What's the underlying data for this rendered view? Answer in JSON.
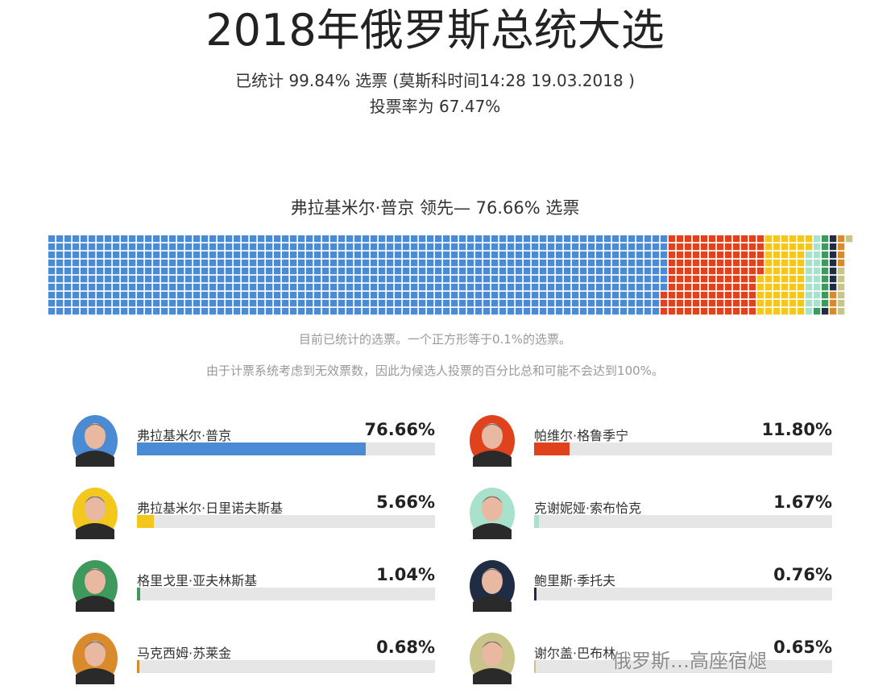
{
  "title": "2018年俄罗斯总统大选",
  "subtitle": "已统计 99.84% 选票 (莫斯科时间14:28 19.03.2018 )",
  "turnout": "投票率为 67.47%",
  "leader_text": "弗拉基米尔·普京 领先— 76.66% 选票",
  "note1": "目前已统计的选票。一个正方形等于0.1%的选票。",
  "note2": "由于计票系统考虑到无效票数，因此为候选人投票的百分比总和可能不会达到100%。",
  "watermark": "俄罗斯…高座宿煺",
  "chart_data": {
    "type": "waffle",
    "unit": "一个正方形等于0.1%的选票",
    "rows": 10,
    "series": [
      {
        "name": "弗拉基米尔·普京",
        "value": 76.66,
        "label": "76.66%",
        "color": "#4a8bd4"
      },
      {
        "name": "帕维尔·格鲁季宁",
        "value": 11.8,
        "label": "11.80%",
        "color": "#e0421d"
      },
      {
        "name": "弗拉基米尔·日里诺夫斯基",
        "value": 5.66,
        "label": "5.66%",
        "color": "#f3c71c"
      },
      {
        "name": "克谢妮娅·索布恰克",
        "value": 1.67,
        "label": "1.67%",
        "color": "#a8e2cc"
      },
      {
        "name": "格里戈里·亚夫林斯基",
        "value": 1.04,
        "label": "1.04%",
        "color": "#3d9a5c"
      },
      {
        "name": "鲍里斯·季托夫",
        "value": 0.76,
        "label": "0.76%",
        "color": "#1f2c44"
      },
      {
        "name": "马克西姆·苏莱金",
        "value": 0.68,
        "label": "0.68%",
        "color": "#d98b2c"
      },
      {
        "name": "谢尔盖·巴布林",
        "value": 0.65,
        "label": "0.65%",
        "color": "#c8c48a"
      }
    ]
  }
}
